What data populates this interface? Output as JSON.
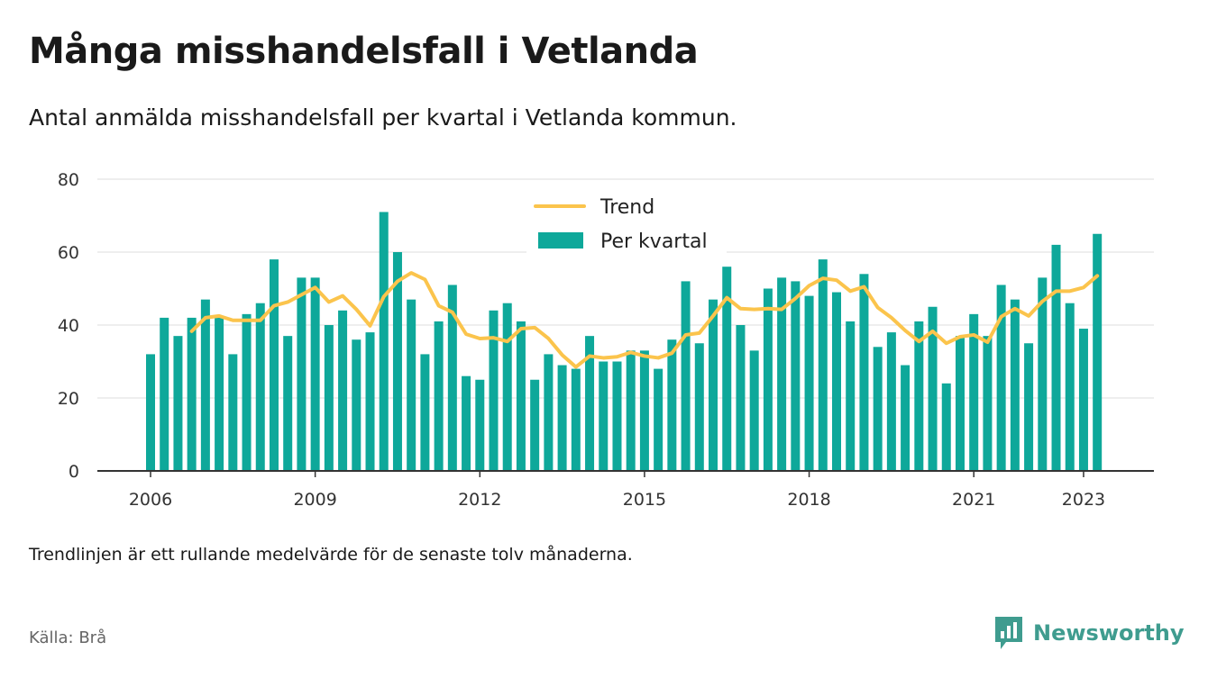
{
  "header": {
    "title": "Många misshandelsfall i Vetlanda",
    "subtitle": "Antal anmälda misshandelsfall per kvartal i Vetlanda kommun."
  },
  "footer": {
    "note": "Trendlinjen är ett rullande medelvärde för de senaste tolv månaderna.",
    "source": "Källa: Brå",
    "brand": "Newsworthy",
    "brand_icon": "bar-chart-speech-bubble-icon"
  },
  "colors": {
    "bars": "#0ea89a",
    "trend": "#fbc44c",
    "grid": "#dddddd",
    "axis": "#333333",
    "brand": "#3f9c8f"
  },
  "chart_data": {
    "type": "bar",
    "ylim": [
      0,
      80
    ],
    "yticks": [
      "0",
      "20",
      "40",
      "60",
      "80"
    ],
    "xticks": [
      "2006",
      "2009",
      "2012",
      "2015",
      "2018",
      "2021",
      "2023"
    ],
    "grid": true,
    "legend_placement": "top-center",
    "categories": [
      "2006 Q1",
      "2006 Q2",
      "2006 Q3",
      "2006 Q4",
      "2007 Q1",
      "2007 Q2",
      "2007 Q3",
      "2007 Q4",
      "2008 Q1",
      "2008 Q2",
      "2008 Q3",
      "2008 Q4",
      "2009 Q1",
      "2009 Q2",
      "2009 Q3",
      "2009 Q4",
      "2010 Q1",
      "2010 Q2",
      "2010 Q3",
      "2010 Q4",
      "2011 Q1",
      "2011 Q2",
      "2011 Q3",
      "2011 Q4",
      "2012 Q1",
      "2012 Q2",
      "2012 Q3",
      "2012 Q4",
      "2013 Q1",
      "2013 Q2",
      "2013 Q3",
      "2013 Q4",
      "2014 Q1",
      "2014 Q2",
      "2014 Q3",
      "2014 Q4",
      "2015 Q1",
      "2015 Q2",
      "2015 Q3",
      "2015 Q4",
      "2016 Q1",
      "2016 Q2",
      "2016 Q3",
      "2016 Q4",
      "2017 Q1",
      "2017 Q2",
      "2017 Q3",
      "2017 Q4",
      "2018 Q1",
      "2018 Q2",
      "2018 Q3",
      "2018 Q4",
      "2019 Q1",
      "2019 Q2",
      "2019 Q3",
      "2019 Q4",
      "2020 Q1",
      "2020 Q2",
      "2020 Q3",
      "2020 Q4",
      "2021 Q1",
      "2021 Q2",
      "2021 Q3",
      "2021 Q4",
      "2022 Q1",
      "2022 Q2",
      "2022 Q3",
      "2022 Q4",
      "2023 Q1",
      "2023 Q2"
    ],
    "series": [
      {
        "name": "Per kvartal",
        "type": "bar",
        "values": [
          32,
          42,
          37,
          42,
          47,
          42,
          32,
          43,
          46,
          58,
          37,
          53,
          53,
          40,
          44,
          36,
          38,
          71,
          60,
          47,
          32,
          41,
          51,
          26,
          25,
          44,
          46,
          41,
          25,
          32,
          29,
          28,
          37,
          30,
          30,
          33,
          33,
          28,
          36,
          52,
          35,
          47,
          56,
          40,
          33,
          50,
          53,
          52,
          48,
          58,
          49,
          41,
          54,
          34,
          38,
          29,
          41,
          45,
          24,
          37,
          43,
          37,
          51,
          47,
          35,
          53,
          62,
          46,
          39,
          65
        ]
      },
      {
        "name": "Trend",
        "type": "line",
        "values": [
          null,
          null,
          null,
          38.3,
          42,
          42.5,
          41.3,
          41.3,
          41.3,
          45.3,
          46.3,
          48.3,
          50.3,
          46.3,
          48,
          44.3,
          39.8,
          47.8,
          52,
          54.3,
          52.5,
          45.3,
          43.5,
          37.5,
          36.3,
          36.5,
          35.5,
          39,
          39.3,
          36.3,
          31.8,
          28.5,
          31.5,
          31,
          31.3,
          32.5,
          31.5,
          31,
          32.3,
          37.3,
          37.8,
          42.5,
          47.5,
          44.5,
          44.3,
          44.5,
          44.3,
          47.3,
          50.8,
          52.8,
          52.3,
          49.3,
          50.5,
          44.8,
          42,
          38.5,
          35.5,
          38.3,
          35,
          36.8,
          37.3,
          35.3,
          42.3,
          44.5,
          42.5,
          46.5,
          49.3,
          49.3,
          50.3,
          53.5
        ]
      }
    ]
  }
}
